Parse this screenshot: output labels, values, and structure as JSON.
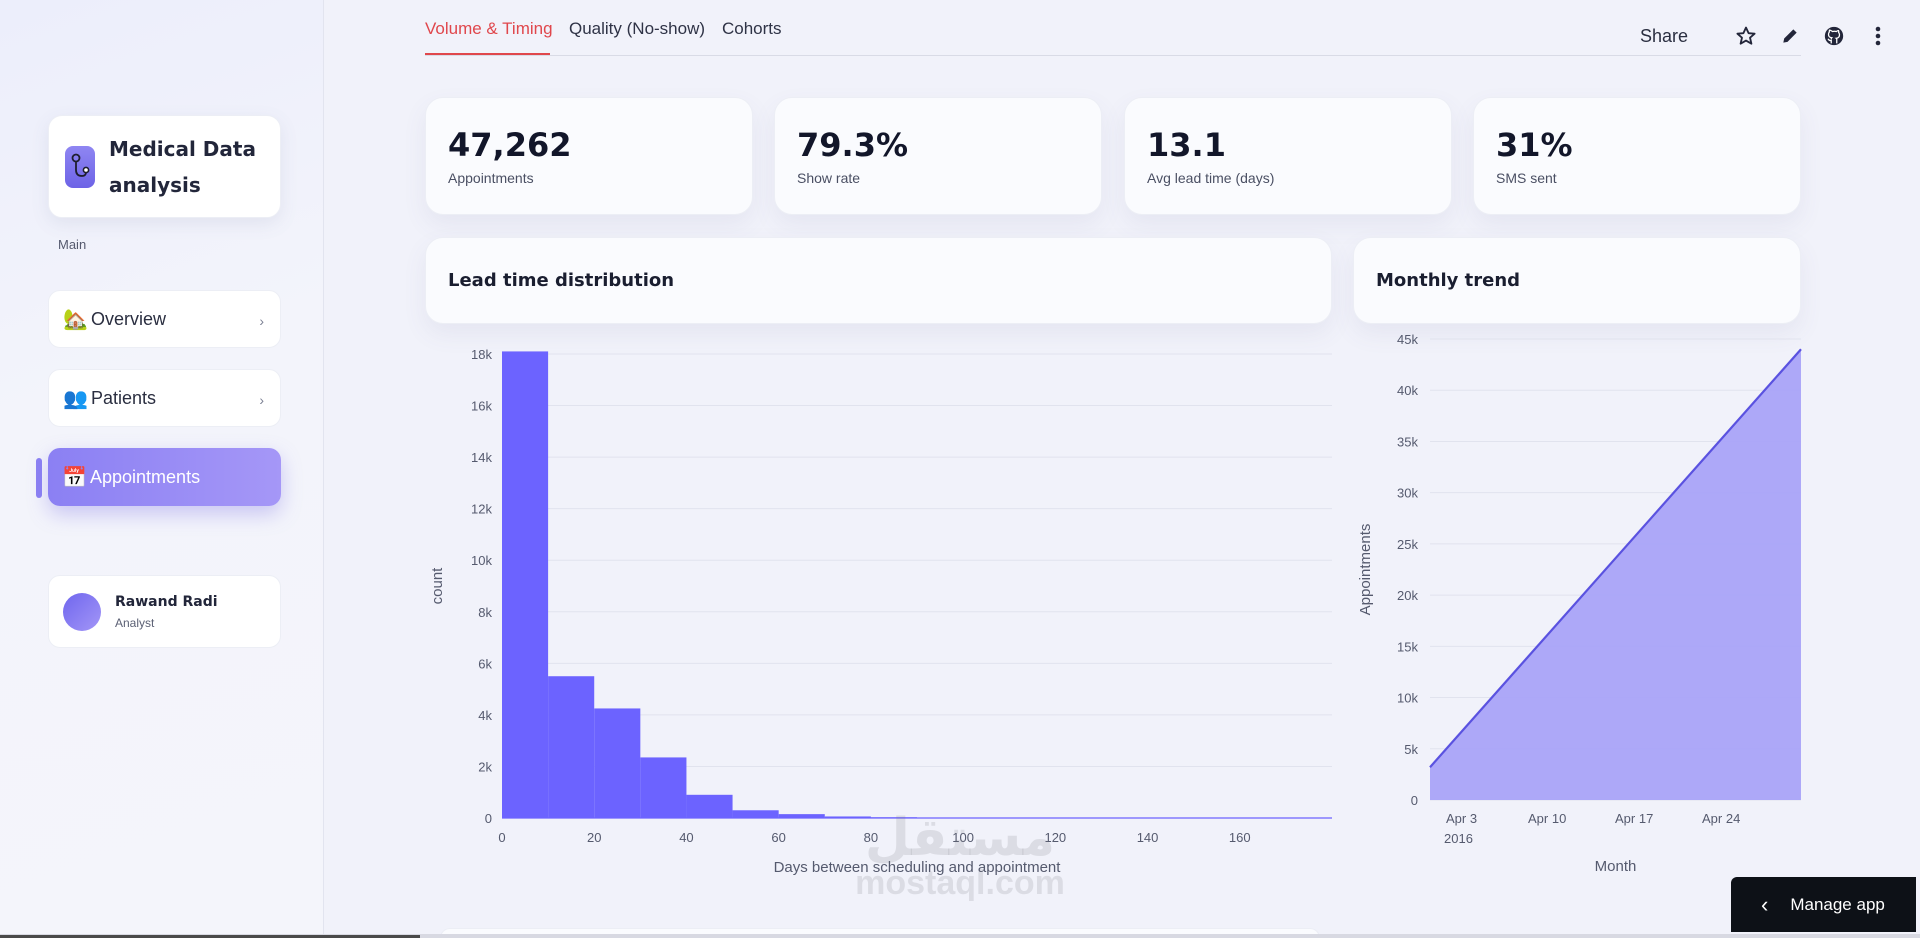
{
  "sidebar": {
    "brand": {
      "title_line1": "Medical Data",
      "title_line2": "analysis",
      "icon": "stethoscope-icon"
    },
    "section_label": "Main",
    "items": [
      {
        "label": "Overview",
        "icon": "house-icon",
        "emoji": "🏡",
        "active": false
      },
      {
        "label": "Patients",
        "icon": "users-icon",
        "emoji": "👥",
        "active": false
      },
      {
        "label": "Appointments",
        "icon": "calendar-icon",
        "emoji": "📅",
        "active": true
      }
    ],
    "user": {
      "name": "Rawand Radi",
      "role": "Analyst"
    }
  },
  "tabs": [
    {
      "label": "Volume & Timing",
      "active": true
    },
    {
      "label": "Quality (No-show)",
      "active": false
    },
    {
      "label": "Cohorts",
      "active": false
    }
  ],
  "toolbar": {
    "share_label": "Share"
  },
  "metrics": [
    {
      "value": "47,262",
      "label": "Appointments"
    },
    {
      "value": "79.3%",
      "label": "Show rate"
    },
    {
      "value": "13.1",
      "label": "Avg lead time (days)"
    },
    {
      "value": "31%",
      "label": "SMS sent"
    }
  ],
  "sections": {
    "lead_time_title": "Lead time distribution",
    "monthly_title": "Monthly trend"
  },
  "colors": {
    "accent": "#6c63ff",
    "tab_active": "#e0474c",
    "area_fill": "#a9a3f8"
  },
  "manage_app_label": "Manage app",
  "watermark": {
    "arabic": "مستقل",
    "latin": "mostaql.com"
  },
  "chart_data": [
    {
      "type": "bar",
      "xlabel": "Days between scheduling and appointment",
      "ylabel": "count",
      "bin_width": 10,
      "bins_start": [
        0,
        10,
        20,
        30,
        40,
        50,
        60,
        70,
        80,
        90,
        100,
        110,
        120,
        130,
        140,
        150,
        160,
        170
      ],
      "values": [
        18100,
        5500,
        4250,
        2350,
        900,
        300,
        150,
        60,
        30,
        15,
        8,
        5,
        3,
        2,
        1,
        1,
        1,
        1
      ],
      "xlim": [
        0,
        180
      ],
      "ylim": [
        0,
        18000
      ],
      "x_ticks": [
        0,
        20,
        40,
        60,
        80,
        100,
        120,
        140,
        160
      ],
      "y_ticks": [
        0,
        2000,
        4000,
        6000,
        8000,
        10000,
        12000,
        14000,
        16000,
        18000
      ],
      "y_tick_labels": [
        "0",
        "2k",
        "4k",
        "6k",
        "8k",
        "10k",
        "12k",
        "14k",
        "16k",
        "18k"
      ],
      "grid": true
    },
    {
      "type": "area",
      "xlabel": "Month",
      "ylabel": "Appointments",
      "x": [
        "2016-04-01",
        "2016-05-01"
      ],
      "y": [
        3200,
        44000
      ],
      "x_tick_labels": [
        "Apr 3",
        "Apr 10",
        "Apr 17",
        "Apr 24"
      ],
      "x_tick_year": "2016",
      "ylim": [
        0,
        45000
      ],
      "y_ticks": [
        0,
        5000,
        10000,
        15000,
        20000,
        25000,
        30000,
        35000,
        40000,
        45000
      ],
      "y_tick_labels": [
        "0",
        "5k",
        "10k",
        "15k",
        "20k",
        "25k",
        "30k",
        "35k",
        "40k",
        "45k"
      ],
      "grid": true
    }
  ]
}
